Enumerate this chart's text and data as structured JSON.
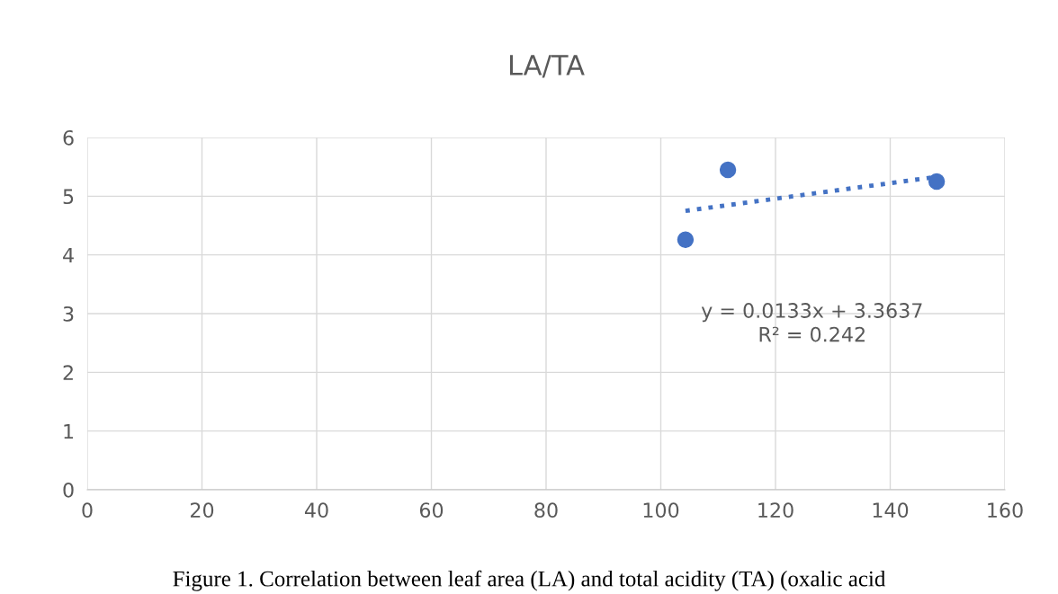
{
  "chart_data": {
    "type": "scatter",
    "title": "LA/TA",
    "series": [
      {
        "color": "#4472c4",
        "marker": "circle",
        "x": [
          104.3,
          111.7,
          148.1
        ],
        "values": [
          4.26,
          5.45,
          5.25
        ]
      },
      {
        "type": "line",
        "color": "#4472c4",
        "line_style": "dotted",
        "marker": "none",
        "x": [
          104.3,
          148.1
        ],
        "values": [
          4.75,
          5.33
        ]
      }
    ],
    "xlim": [
      0,
      160
    ],
    "xticks": [
      0,
      20,
      40,
      60,
      80,
      100,
      120,
      140,
      160
    ],
    "ylim": [
      0,
      6
    ],
    "yticks": [
      0,
      1,
      2,
      3,
      4,
      5,
      6
    ],
    "grid": true,
    "legend": false,
    "annotations": [
      "y = 0.0133x + 3.3637\nR² = 0.242",
      "Figure 1. Correlation between leaf area (LA) and total acidity (TA) (oxalic acid"
    ]
  }
}
